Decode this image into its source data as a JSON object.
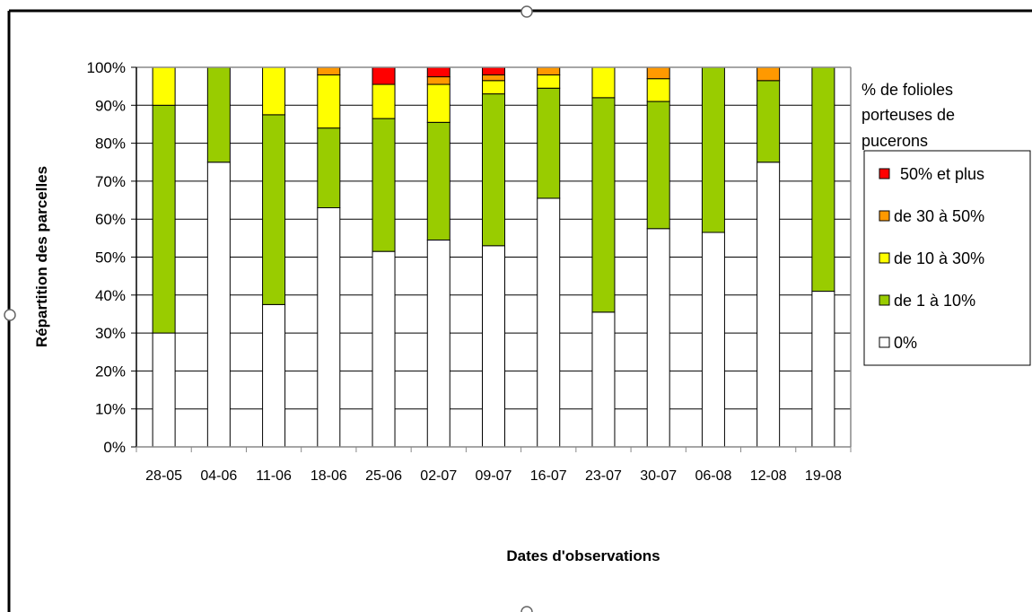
{
  "chart_data": {
    "type": "bar",
    "stacked": true,
    "xlabel": "Dates d'observations",
    "ylabel": "Répartition des parcelles",
    "ylim": [
      0,
      100
    ],
    "yticks": [
      "0%",
      "10%",
      "20%",
      "30%",
      "40%",
      "50%",
      "60%",
      "70%",
      "80%",
      "90%",
      "100%"
    ],
    "grid": true,
    "legend_position": "right",
    "legend_title": [
      "% de folioles",
      "porteuses de",
      "pucerons"
    ],
    "categories": [
      "28-05",
      "04-06",
      "11-06",
      "18-06",
      "25-06",
      "02-07",
      "09-07",
      "16-07",
      "23-07",
      "30-07",
      "06-08",
      "12-08",
      "19-08"
    ],
    "series": [
      {
        "name": "0%",
        "color": "#ffffff",
        "values": [
          30,
          75,
          37.5,
          63,
          51.5,
          54.5,
          53,
          65.5,
          35.5,
          57.5,
          56.5,
          75,
          41
        ]
      },
      {
        "name": "de 1 à 10%",
        "color": "#99cc00",
        "values": [
          60,
          25,
          50,
          21,
          35,
          31,
          40,
          29,
          56.5,
          33.5,
          43.5,
          21.5,
          59
        ]
      },
      {
        "name": "de 10 à 30%",
        "color": "#ffff00",
        "values": [
          10,
          0,
          12.5,
          14,
          9,
          10,
          3.5,
          3.5,
          8,
          6,
          0,
          0,
          0
        ]
      },
      {
        "name": "de 30 à 50%",
        "color": "#ff9900",
        "values": [
          0,
          0,
          0,
          2,
          0,
          2,
          1.5,
          2,
          0,
          3,
          0,
          3.5,
          0
        ]
      },
      {
        "name": "50% et plus",
        "color": "#ff0000",
        "values": [
          0,
          0,
          0,
          0,
          4.5,
          2.5,
          2,
          0,
          0,
          0,
          0,
          0,
          0
        ]
      }
    ],
    "legend_order": [
      "50% et plus",
      "de 30 à 50%",
      "de 10 à 30%",
      "de 1 à 10%",
      "0%"
    ]
  }
}
